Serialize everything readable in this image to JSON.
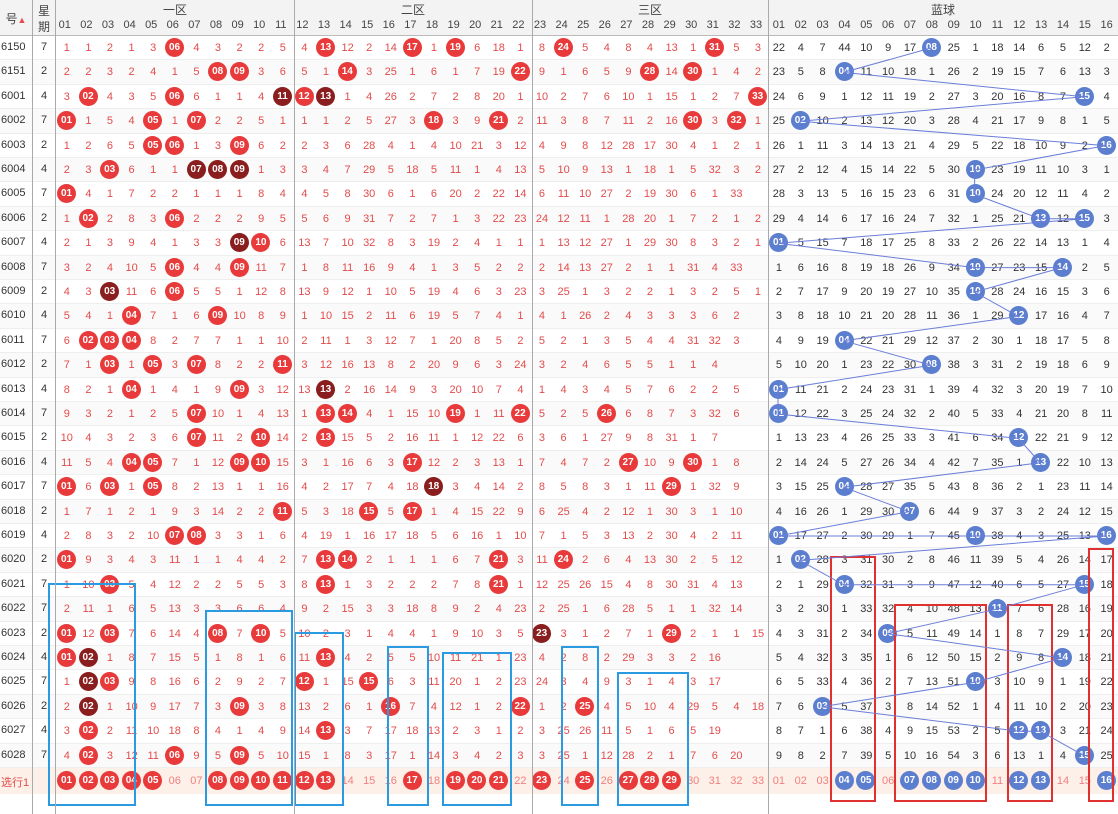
{
  "header": {
    "term_label": "号",
    "week_label_top": "星",
    "week_label_bot": "期",
    "zone1": "一区",
    "zone2": "二区",
    "zone3": "三区",
    "blue": "蓝球",
    "red_cols": [
      "01",
      "02",
      "03",
      "04",
      "05",
      "06",
      "07",
      "08",
      "09",
      "10",
      "11",
      "12",
      "13",
      "14",
      "15",
      "16",
      "17",
      "18",
      "19",
      "20",
      "21",
      "22",
      "23",
      "24",
      "25",
      "26",
      "27",
      "28",
      "29",
      "30",
      "31",
      "32",
      "33"
    ],
    "blue_cols": [
      "01",
      "02",
      "03",
      "04",
      "05",
      "06",
      "07",
      "08",
      "09",
      "10",
      "11",
      "12",
      "13",
      "14",
      "15",
      "16"
    ]
  },
  "colors": {
    "red_ball": "#e83a3a",
    "dark_red_ball": "#8a1e1e",
    "blue_ball": "#5c7ecf",
    "highlight_blue": "#2a9be0",
    "highlight_red": "#e03030"
  },
  "rows": [
    {
      "term": "6150",
      "week": "7",
      "red": "1,1,2,1,3,06,4,3,2,2,5,4,13,12,2,14,17,1,19,6,18,1,8,24,5,4,8,4,13,1,31,5,3",
      "bluev": "22,4,7,44,10,9,17,08,25,1,18,14,6,5,12,2"
    },
    {
      "term": "6151",
      "week": "2",
      "red": "2,2,3,2,4,1,5,08,09,3,6,5,1,14,3,25,1,6,1,7,19,22,9,1,6,5,9,28,14,30,1,4,2",
      "bluev": "23,5,8,04,11,10,18,1,26,2,19,15,7,6,13,3"
    },
    {
      "term": "6001",
      "week": "4",
      "red": "3,02,4,3,5,06,6,1,1,4,11,12,13,1,4,26,2,7,2,8,20,1,10,2,7,6,10,1,15,1,2,7,33",
      "bluev": "24,6,9,1,12,11,19,2,27,3,20,16,8,7,15,4"
    },
    {
      "term": "6002",
      "week": "7",
      "red": "01,1,5,4,05,1,07,2,2,5,1,1,1,2,5,27,3,18,3,9,21,2,11,3,8,7,11,2,16,30,3,32,1",
      "bluev": "25,02,10,2,13,12,20,3,28,4,21,17,9,8,1,5"
    },
    {
      "term": "6003",
      "week": "2",
      "red": "1,2,6,5,05,06,1,3,09,6,2,2,3,6,28,4,1,4,10,21,3,12,4,9,8,12,28,17,30,4,1,2,1",
      "bluev": "26,1,11,3,14,13,21,4,29,5,22,18,10,9,2,16"
    },
    {
      "term": "6004",
      "week": "4",
      "red": "2,3,03,6,1,1,07,08,09,1,3,3,4,7,29,5,18,5,11,1,4,13,5,10,9,13,1,18,1,5,32,3,2",
      "bluev": "27,2,12,4,15,14,22,5,30,10,23,19,11,10,3,1"
    },
    {
      "term": "6005",
      "week": "7",
      "red": "01,4,1,7,2,2,1,1,1,8,4,4,5,8,30,6,1,6,20,2,22,14,6,11,10,27,2,19,30,6,1,33",
      "bluev": "28,3,13,5,16,15,23,6,31,10,24,20,12,11,4,2"
    },
    {
      "term": "6006",
      "week": "2",
      "red": "1,02,2,8,3,06,2,2,2,9,5,5,6,9,31,7,2,7,1,3,22,23,24,12,11,1,28,20,1,7,2,1,2",
      "bluev": "29,4,14,6,17,16,24,7,32,1,25,21,13,12,15,3"
    },
    {
      "term": "6007",
      "week": "4",
      "red": "2,1,3,9,4,1,3,3,09,10,6,13,7,10,32,8,3,19,2,4,1,1,1,13,12,27,1,29,30,8,3,2,1",
      "bluev": "01,5,15,7,18,17,25,8,33,2,26,22,14,13,1,4"
    },
    {
      "term": "6008",
      "week": "7",
      "red": "3,2,4,10,5,06,4,4,09,11,7,1,8,11,16,9,4,1,3,5,2,2,2,14,13,27,2,1,1,31,4,33",
      "bluev": "1,6,16,8,19,18,26,9,34,10,27,23,15,14,2,5"
    },
    {
      "term": "6009",
      "week": "2",
      "red": "4,3,03,11,6,06,5,5,1,12,8,13,9,12,1,10,5,19,4,6,3,23,3,25,1,3,2,2,1,3,2,5,1",
      "bluev": "2,7,17,9,20,19,27,10,35,10,28,24,16,15,3,6"
    },
    {
      "term": "6010",
      "week": "4",
      "red": "5,4,1,04,7,1,6,09,10,8,9,1,10,15,2,11,6,19,5,7,4,1,4,1,26,2,4,3,3,3,6,2",
      "bluev": "3,8,18,10,21,20,28,11,36,1,29,12,17,16,4,7"
    },
    {
      "term": "6011",
      "week": "7",
      "red": "6,02,03,04,8,2,7,7,1,1,10,2,11,1,3,12,7,1,20,8,5,2,5,2,1,3,5,4,4,31,32,3",
      "bluev": "4,9,19,04,22,21,29,12,37,2,30,1,18,17,5,8"
    },
    {
      "term": "6012",
      "week": "2",
      "red": "7,1,03,1,05,3,07,8,2,2,11,3,12,16,13,8,2,20,9,6,3,24,3,2,4,6,5,5,1,1,4",
      "bluev": "5,10,20,1,23,22,30,08,38,3,31,2,19,18,6,9"
    },
    {
      "term": "6013",
      "week": "4",
      "red": "8,2,1,04,1,4,1,9,09,3,12,13,13,2,16,14,9,3,20,10,7,4,1,4,3,4,5,7,6,2,2,5",
      "bluev": "01,11,21,2,24,23,31,1,39,4,32,3,20,19,7,10"
    },
    {
      "term": "6014",
      "week": "7",
      "red": "9,3,2,1,2,5,07,10,1,4,13,1,13,14,4,1,15,10,19,1,11,22,5,2,5,26,6,8,7,3,32,6",
      "bluev": "01,12,22,3,25,24,32,2,40,5,33,4,21,20,8,11"
    },
    {
      "term": "6015",
      "week": "2",
      "red": "10,4,3,2,3,6,07,11,2,10,14,2,13,15,5,2,16,11,1,12,22,6,3,6,1,27,9,8,31,1,7",
      "bluev": "1,13,23,4,26,25,33,3,41,6,34,12,22,21,9,12"
    },
    {
      "term": "6016",
      "week": "4",
      "red": "11,5,4,04,05,7,1,12,09,10,15,3,1,16,6,3,17,12,2,3,13,1,7,4,7,2,27,10,9,30,1,8",
      "bluev": "2,14,24,5,27,26,34,4,42,7,35,1,13,22,10,13"
    },
    {
      "term": "6017",
      "week": "7",
      "red": "01,6,03,1,05,8,2,13,1,1,16,4,2,17,7,4,18,18,3,4,14,2,8,5,8,3,1,11,29,1,32,9",
      "bluev": "3,15,25,04,28,27,35,5,43,8,36,2,1,23,11,14"
    },
    {
      "term": "6018",
      "week": "2",
      "red": "1,7,1,2,1,9,3,14,2,2,11,5,3,18,15,5,17,1,4,15,22,9,6,25,4,2,12,1,30,3,1,10",
      "bluev": "4,16,26,1,29,30,07,6,44,9,37,3,2,24,12,15"
    },
    {
      "term": "6019",
      "week": "4",
      "red": "2,8,3,2,10,07,08,3,3,1,6,4,19,1,16,17,18,5,6,16,1,10,7,1,5,3,13,2,30,4,2,11",
      "bluev": "01,17,27,2,30,29,1,7,45,10,38,4,3,25,13,16"
    },
    {
      "term": "6020",
      "week": "2",
      "red": "01,9,3,4,3,11,1,1,4,4,2,7,13,14,2,1,1,1,6,7,21,3,11,24,2,6,4,13,30,2,5,12",
      "bluev": "1,02,28,3,31,30,2,8,46,11,39,5,4,26,14,17"
    },
    {
      "term": "6021",
      "week": "7",
      "red": "1,10,03,5,4,12,2,2,5,5,3,8,13,1,3,2,2,2,7,8,21,1,12,25,26,15,4,8,30,31,4,13",
      "bluev": "2,1,29,04,32,31,3,9,47,12,40,6,5,27,15,18"
    },
    {
      "term": "6022",
      "week": "7",
      "red": "2,11,1,6,5,13,3,3,6,6,4,9,2,15,3,3,18,8,9,2,4,23,2,25,1,6,28,5,1,1,32,14",
      "bluev": "3,2,30,1,33,32,4,10,48,13,11,7,6,28,16,19"
    },
    {
      "term": "6023",
      "week": "2",
      "red": "01,12,03,7,6,14,4,08,7,10,5,10,2,3,1,4,4,1,9,10,3,5,23,3,1,2,7,1,29,2,1,1,15",
      "bluev": "4,3,31,2,34,06,5,11,49,14,1,8,7,29,17,20"
    },
    {
      "term": "6024",
      "week": "4",
      "red": "01,02,1,8,7,15,5,1,8,1,6,11,13,4,2,5,5,10,11,21,1,23,4,2,8,2,29,3,3,2,16",
      "bluev": "5,4,32,3,35,1,6,12,50,15,2,9,8,14,18,21"
    },
    {
      "term": "6025",
      "week": "7",
      "red": "1,02,03,9,8,16,6,2,9,2,7,12,1,15,15,6,3,11,20,1,2,23,24,3,4,9,3,1,4,3,17",
      "bluev": "6,5,33,4,36,2,7,13,51,10,3,10,9,1,19,22"
    },
    {
      "term": "6026",
      "week": "2",
      "red": "2,02,1,10,9,17,7,3,09,3,8,13,2,6,1,16,7,4,12,1,2,22,1,2,25,4,5,10,4,29,5,4,18",
      "bluev": "7,6,03,5,37,3,8,14,52,1,4,11,10,2,20,23"
    },
    {
      "term": "6027",
      "week": "4",
      "red": "3,02,2,11,10,18,8,4,1,4,9,14,13,3,7,17,18,13,2,3,1,2,3,25,26,11,5,1,6,5,19",
      "bluev": "8,7,1,6,38,4,9,15,53,2,5,12,13,3,21,24"
    },
    {
      "term": "6028",
      "week": "7",
      "red": "4,02,3,12,11,06,9,5,09,5,10,15,1,8,3,17,1,14,3,4,2,3,3,25,1,12,28,2,1,7,6,20",
      "bluev": "9,8,2,7,39,5,10,16,54,3,6,13,1,4,15,25"
    }
  ],
  "select_row": {
    "label": "选行1",
    "red": [
      "01",
      "02",
      "03",
      "04",
      "05",
      "06",
      "07",
      "08",
      "09",
      "10",
      "11",
      "12",
      "13",
      "14",
      "15",
      "16",
      "17",
      "18",
      "19",
      "20",
      "21",
      "22",
      "23",
      "24",
      "25",
      "26",
      "27",
      "28",
      "29",
      "30",
      "31",
      "32",
      "33"
    ],
    "blue": [
      "01",
      "02",
      "03",
      "04",
      "05",
      "06",
      "07",
      "08",
      "09",
      "10",
      "11",
      "12",
      "13",
      "14",
      "15",
      "16"
    ]
  }
}
